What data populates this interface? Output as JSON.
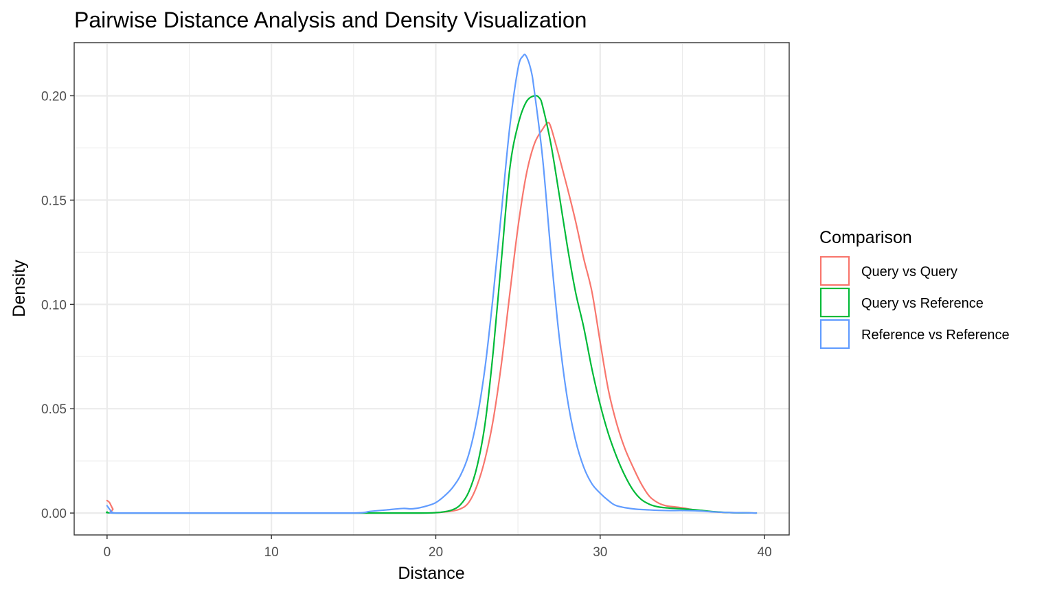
{
  "chart_data": {
    "type": "line",
    "title": "Pairwise Distance Analysis and Density Visualization",
    "xlabel": "Distance",
    "ylabel": "Density",
    "xlim": [
      -2,
      41.5
    ],
    "ylim": [
      -0.0105,
      0.2255
    ],
    "x_ticks": [
      0,
      10,
      20,
      30,
      40
    ],
    "x_tick_labels": [
      "0",
      "10",
      "20",
      "30",
      "40"
    ],
    "y_ticks": [
      0,
      0.05,
      0.1,
      0.15,
      0.2
    ],
    "y_tick_labels": [
      "0.00",
      "0.05",
      "0.10",
      "0.15",
      "0.20"
    ],
    "grid": true,
    "legend": {
      "title": "Comparison",
      "position": "right"
    },
    "series": [
      {
        "name": "Query vs Query",
        "color": "#F8766D",
        "points": [
          [
            0,
            0.006
          ],
          [
            0.15,
            0.005
          ],
          [
            0.35,
            0.002
          ],
          [
            0.6,
            0.0
          ],
          [
            5,
            0.0
          ],
          [
            10,
            0.0
          ],
          [
            15,
            0.0
          ],
          [
            19,
            0.0
          ],
          [
            20,
            0.0002
          ],
          [
            20.5,
            0.0005
          ],
          [
            21,
            0.001
          ],
          [
            21.5,
            0.002
          ],
          [
            22,
            0.005
          ],
          [
            22.5,
            0.013
          ],
          [
            23,
            0.026
          ],
          [
            23.5,
            0.045
          ],
          [
            24,
            0.072
          ],
          [
            24.5,
            0.105
          ],
          [
            25,
            0.137
          ],
          [
            25.5,
            0.162
          ],
          [
            26,
            0.177
          ],
          [
            26.5,
            0.184
          ],
          [
            26.8,
            0.187
          ],
          [
            27,
            0.185
          ],
          [
            27.5,
            0.171
          ],
          [
            28,
            0.156
          ],
          [
            28.5,
            0.14
          ],
          [
            29,
            0.122
          ],
          [
            29.5,
            0.106
          ],
          [
            30,
            0.082
          ],
          [
            30.5,
            0.059
          ],
          [
            31,
            0.043
          ],
          [
            31.5,
            0.031
          ],
          [
            32,
            0.022
          ],
          [
            32.5,
            0.014
          ],
          [
            33,
            0.008
          ],
          [
            33.5,
            0.005
          ],
          [
            34,
            0.0035
          ],
          [
            34.5,
            0.003
          ],
          [
            35,
            0.0025
          ],
          [
            35.5,
            0.0018
          ],
          [
            36,
            0.0012
          ],
          [
            37,
            0.0005
          ],
          [
            38,
            0.0002
          ],
          [
            39,
            0.0001
          ],
          [
            39.5,
            0.0
          ]
        ]
      },
      {
        "name": "Query vs Reference",
        "color": "#00BA38",
        "points": [
          [
            0,
            0.0005
          ],
          [
            0.5,
            0.0
          ],
          [
            5,
            0.0
          ],
          [
            10,
            0.0
          ],
          [
            15,
            0.0
          ],
          [
            19,
            0.0
          ],
          [
            20,
            0.0002
          ],
          [
            20.5,
            0.0006
          ],
          [
            21,
            0.0015
          ],
          [
            21.5,
            0.004
          ],
          [
            22,
            0.01
          ],
          [
            22.5,
            0.022
          ],
          [
            23,
            0.043
          ],
          [
            23.5,
            0.078
          ],
          [
            24,
            0.122
          ],
          [
            24.5,
            0.165
          ],
          [
            25,
            0.186
          ],
          [
            25.5,
            0.197
          ],
          [
            26,
            0.2
          ],
          [
            26.3,
            0.199
          ],
          [
            26.5,
            0.195
          ],
          [
            27,
            0.177
          ],
          [
            27.5,
            0.153
          ],
          [
            28,
            0.128
          ],
          [
            28.5,
            0.106
          ],
          [
            29,
            0.089
          ],
          [
            29.5,
            0.069
          ],
          [
            30,
            0.052
          ],
          [
            30.5,
            0.038
          ],
          [
            31,
            0.027
          ],
          [
            31.5,
            0.018
          ],
          [
            32,
            0.011
          ],
          [
            32.5,
            0.0065
          ],
          [
            33,
            0.0042
          ],
          [
            33.5,
            0.003
          ],
          [
            34,
            0.0025
          ],
          [
            35,
            0.002
          ],
          [
            36,
            0.0014
          ],
          [
            37,
            0.0006
          ],
          [
            38,
            0.0002
          ],
          [
            39,
            0.0001
          ],
          [
            39.5,
            0.0
          ]
        ]
      },
      {
        "name": "Reference vs Reference",
        "color": "#619CFF",
        "points": [
          [
            0,
            0.0035
          ],
          [
            0.3,
            0.0005
          ],
          [
            0.6,
            0.0
          ],
          [
            5,
            0.0
          ],
          [
            10,
            0.0
          ],
          [
            15,
            0.0
          ],
          [
            16,
            0.0008
          ],
          [
            17,
            0.0015
          ],
          [
            18,
            0.0022
          ],
          [
            18.5,
            0.002
          ],
          [
            19,
            0.0025
          ],
          [
            19.5,
            0.0035
          ],
          [
            20,
            0.005
          ],
          [
            20.5,
            0.008
          ],
          [
            21,
            0.012
          ],
          [
            21.5,
            0.018
          ],
          [
            22,
            0.028
          ],
          [
            22.5,
            0.045
          ],
          [
            23,
            0.07
          ],
          [
            23.5,
            0.105
          ],
          [
            24,
            0.145
          ],
          [
            24.5,
            0.185
          ],
          [
            25,
            0.213
          ],
          [
            25.3,
            0.219
          ],
          [
            25.5,
            0.219
          ],
          [
            25.8,
            0.212
          ],
          [
            26,
            0.202
          ],
          [
            26.5,
            0.17
          ],
          [
            27,
            0.125
          ],
          [
            27.5,
            0.085
          ],
          [
            28,
            0.055
          ],
          [
            28.5,
            0.035
          ],
          [
            29,
            0.022
          ],
          [
            29.5,
            0.014
          ],
          [
            30,
            0.0095
          ],
          [
            30.5,
            0.006
          ],
          [
            31,
            0.0035
          ],
          [
            32,
            0.002
          ],
          [
            33,
            0.0015
          ],
          [
            34,
            0.0012
          ],
          [
            35,
            0.0012
          ],
          [
            36,
            0.001
          ],
          [
            37,
            0.0005
          ],
          [
            38,
            0.0002
          ],
          [
            39,
            0.0001
          ],
          [
            39.5,
            0.0
          ]
        ]
      }
    ]
  }
}
